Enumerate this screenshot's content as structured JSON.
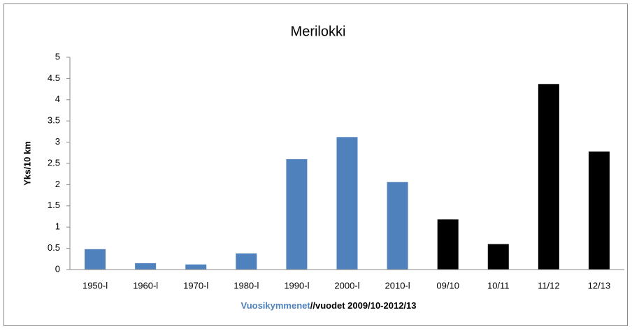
{
  "chart_data": {
    "type": "bar",
    "title": "Merilokki",
    "y_label": "Yks/10 km",
    "x_label_parts": [
      "Vuosikymmenet",
      "//vuodet 2009/10-2012/13"
    ],
    "x_label_colors": [
      "#4f81bd",
      "#000000"
    ],
    "categories": [
      "1950-l",
      "1960-l",
      "1970-l",
      "1980-l",
      "1990-l",
      "2000-l",
      "2010-l",
      "09/10",
      "10/11",
      "11/12",
      "12/13"
    ],
    "values": [
      0.48,
      0.15,
      0.12,
      0.38,
      2.6,
      3.12,
      2.06,
      1.18,
      0.6,
      4.37,
      2.78
    ],
    "colors": [
      "#4f81bd",
      "#4f81bd",
      "#4f81bd",
      "#4f81bd",
      "#4f81bd",
      "#4f81bd",
      "#4f81bd",
      "#000000",
      "#000000",
      "#000000",
      "#000000"
    ],
    "ylim": [
      0,
      5
    ],
    "yticks": [
      0,
      0.5,
      1,
      1.5,
      2,
      2.5,
      3,
      3.5,
      4,
      4.5,
      5
    ],
    "grid": false
  }
}
